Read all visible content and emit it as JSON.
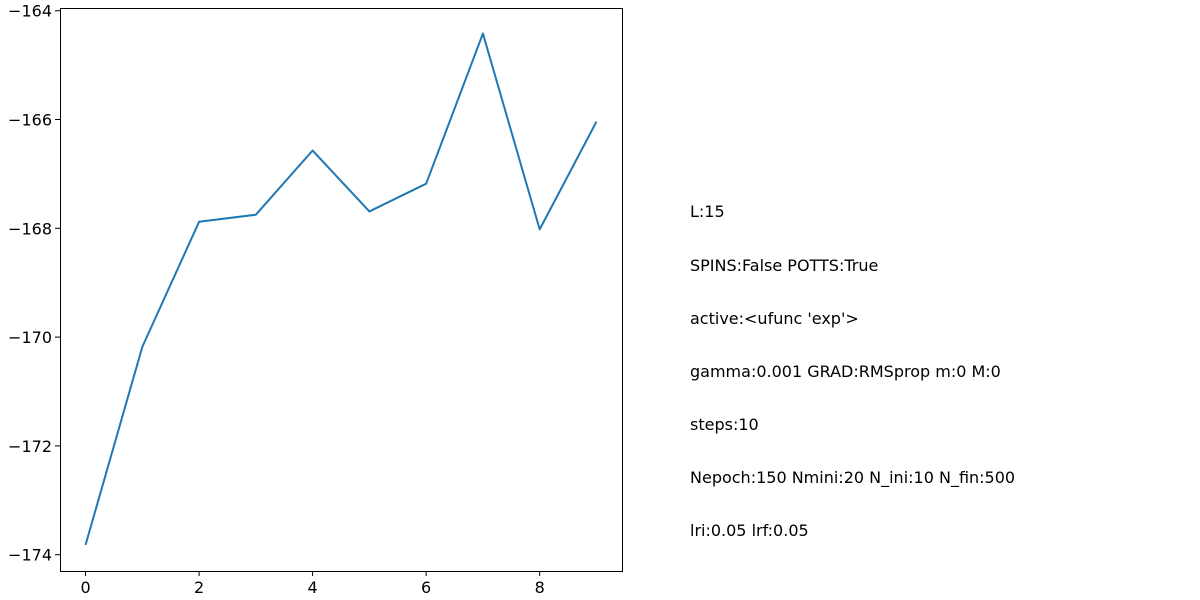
{
  "chart_data": {
    "type": "line",
    "title": "",
    "xlabel": "",
    "ylabel": "",
    "x": [
      0,
      1,
      2,
      3,
      4,
      5,
      6,
      7,
      8,
      9
    ],
    "series": [
      {
        "color": "#1f77b4",
        "values": [
          -173.82,
          -170.18,
          -167.88,
          -167.75,
          -166.57,
          -167.69,
          -167.18,
          -164.42,
          -168.02,
          -166.04
        ]
      }
    ],
    "xlim": [
      -0.45,
      9.45
    ],
    "ylim": [
      -174.3,
      -163.95
    ],
    "xticks": [
      0,
      2,
      4,
      6,
      8
    ],
    "yticks": [
      -174,
      -172,
      -170,
      -168,
      -166,
      -164
    ],
    "grid": false
  },
  "annotation": {
    "lines": [
      "L:15",
      "SPINS:False POTTS:True",
      "active:<ufunc 'exp'>",
      "gamma:0.001 GRAD:RMSprop m:0 M:0",
      "steps:10",
      "Nepoch:150 Nmini:20 N_ini:10 N_fin:500",
      "lri:0.05 lrf:0.05"
    ]
  }
}
